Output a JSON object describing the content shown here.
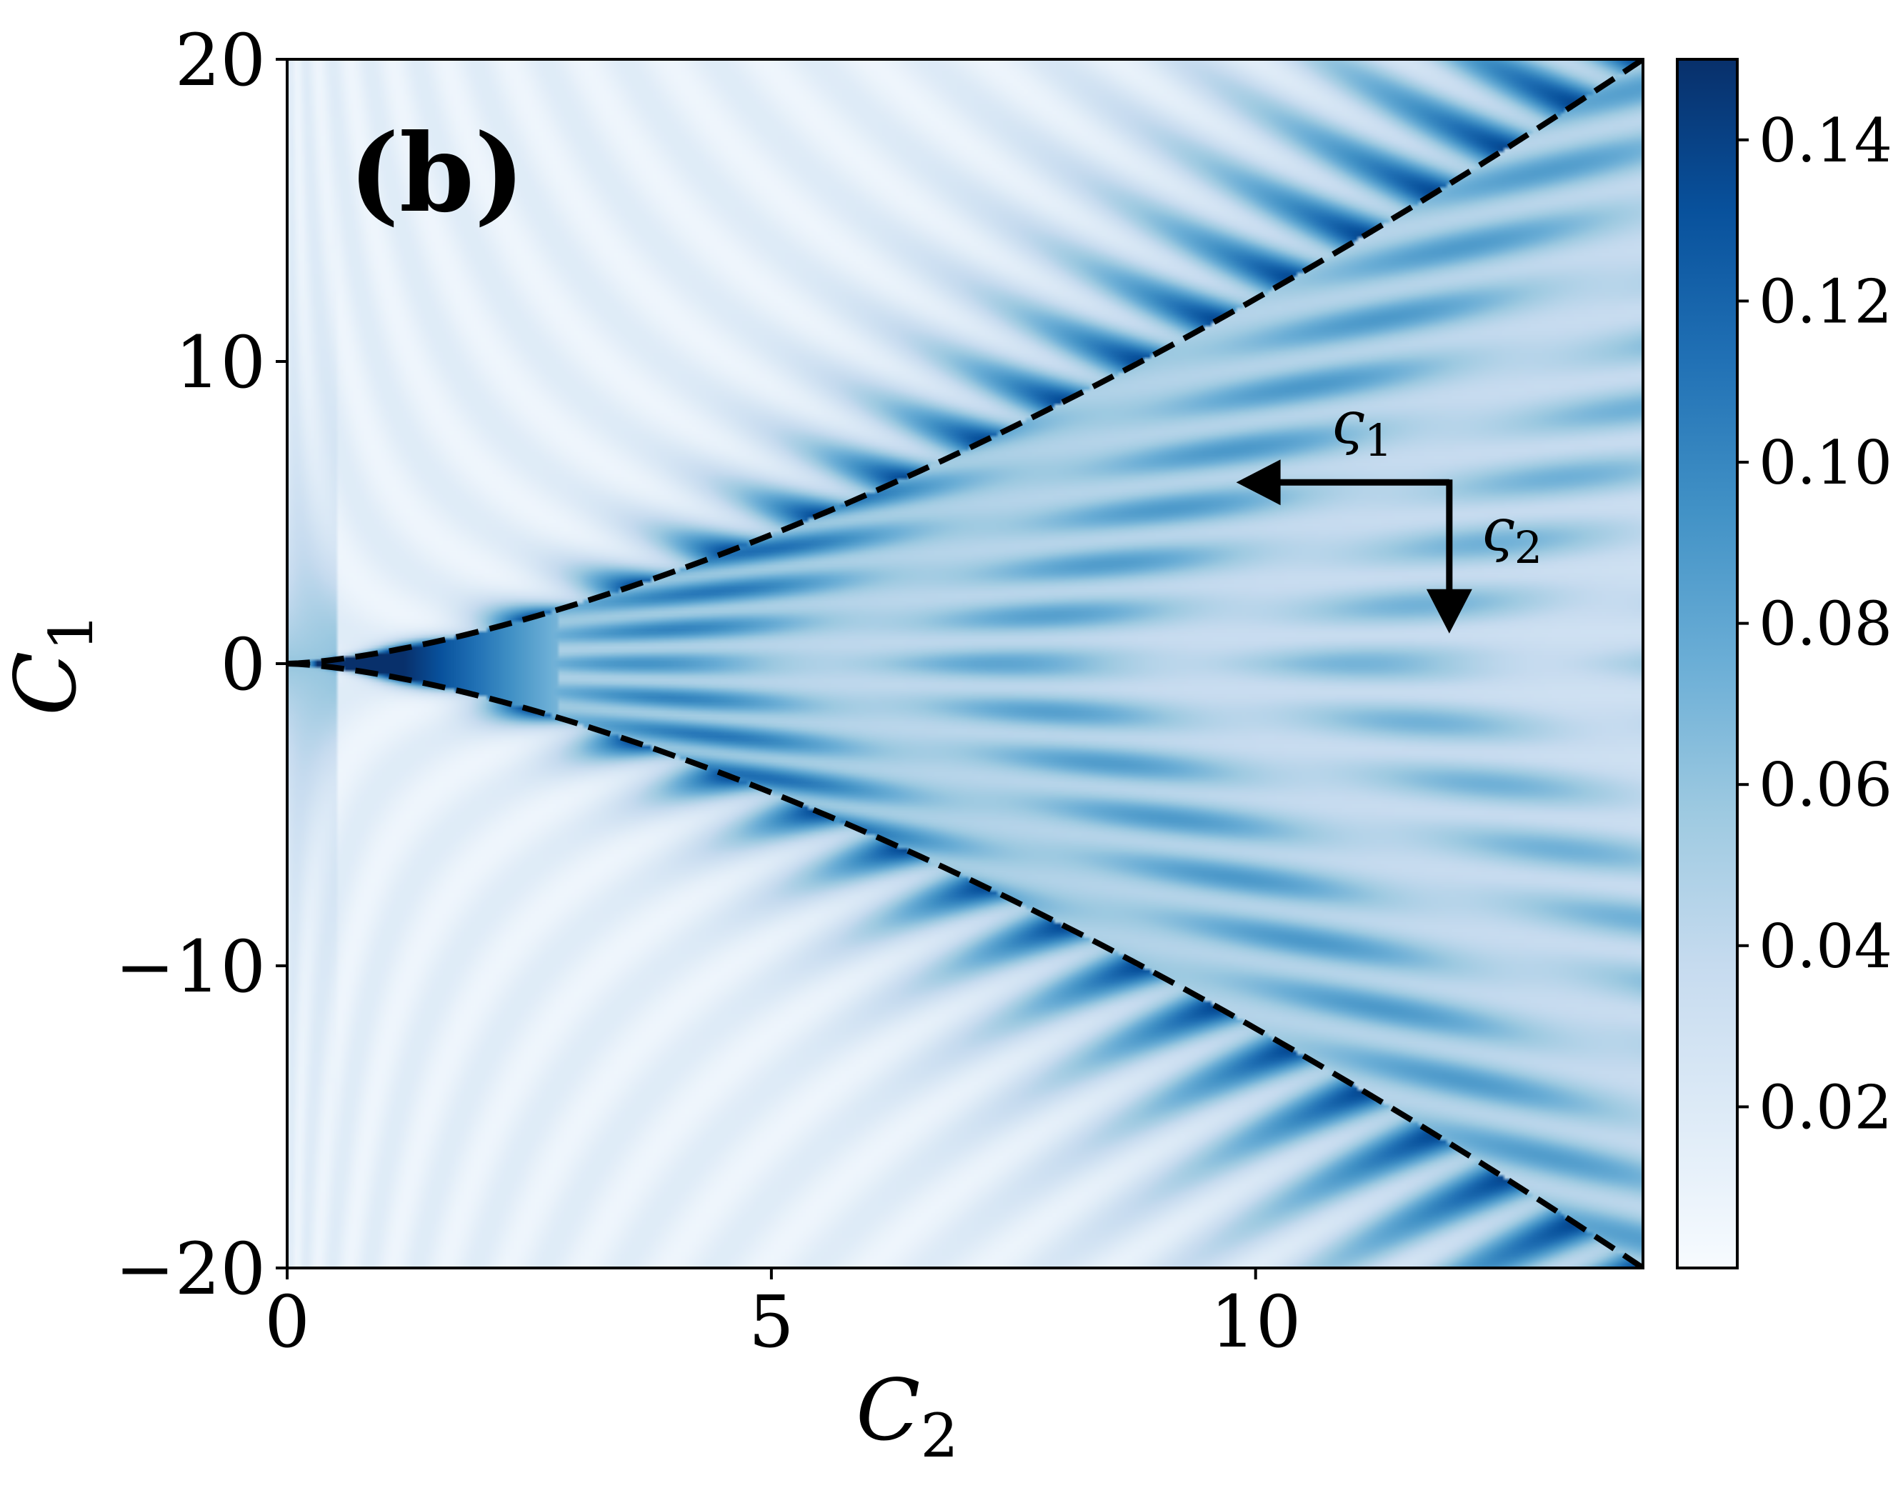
{
  "panel_label": "(b)",
  "chart_data": {
    "type": "heatmap",
    "title": "",
    "xlabel": "C",
    "xlabel_sub": "2",
    "ylabel": "C",
    "ylabel_sub": "1",
    "xlim": [
      0,
      14
    ],
    "ylim": [
      -20,
      20
    ],
    "x_ticks": [
      0,
      5,
      10
    ],
    "x_tick_labels": [
      "0",
      "5",
      "10"
    ],
    "y_ticks": [
      20,
      10,
      0,
      -10,
      -20
    ],
    "y_tick_labels": [
      "20",
      "10",
      "0",
      "−10",
      "−20"
    ],
    "colormap": "Blues",
    "color_range": [
      0,
      0.15
    ],
    "colorbar_ticks": [
      0.14,
      0.12,
      0.1,
      0.08,
      0.06,
      0.04,
      0.02
    ],
    "colorbar_tick_labels": [
      "0.14",
      "0.12",
      "0.10",
      "0.08",
      "0.06",
      "0.04",
      "0.02"
    ],
    "boundary_curves": {
      "style": "dashed",
      "color": "#000000",
      "description_points_upper": [
        [
          0,
          0
        ],
        [
          2,
          1.4
        ],
        [
          5,
          4.5
        ],
        [
          8,
          9.3
        ],
        [
          10,
          12.7
        ],
        [
          14,
          20
        ]
      ],
      "description_points_lower": [
        [
          0,
          0
        ],
        [
          2,
          -1.4
        ],
        [
          5,
          -4.5
        ],
        [
          8,
          -9.3
        ],
        [
          10,
          -12.7
        ],
        [
          14,
          -20
        ]
      ]
    },
    "annotations": [
      {
        "text": "ς",
        "sub": "1",
        "arrow": "left",
        "arrow_from": [
          12,
          6
        ],
        "arrow_to": [
          9.8,
          6
        ]
      },
      {
        "text": "ς",
        "sub": "2",
        "arrow": "down",
        "arrow_from": [
          12,
          6
        ],
        "arrow_to": [
          12,
          1
        ]
      }
    ],
    "grid": false,
    "legend": "none"
  }
}
